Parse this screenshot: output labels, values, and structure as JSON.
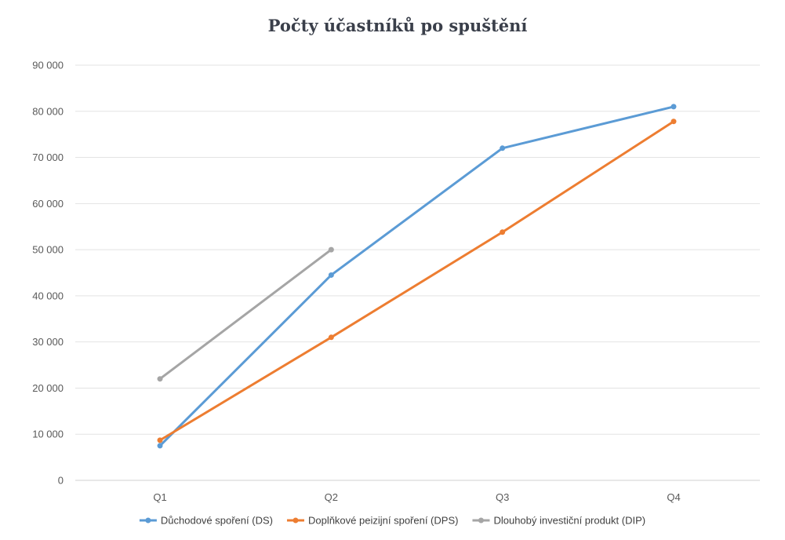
{
  "chart_data": {
    "type": "line",
    "title": "Počty účastníků po spuštění",
    "xlabel": "",
    "ylabel": "",
    "categories": [
      "Q1",
      "Q2",
      "Q3",
      "Q4"
    ],
    "ylim": [
      0,
      90000
    ],
    "yticks": [
      0,
      10000,
      20000,
      30000,
      40000,
      50000,
      60000,
      70000,
      80000,
      90000
    ],
    "ytick_labels": [
      "0",
      "10 000",
      "20 000",
      "30 000",
      "40 000",
      "50 000",
      "60 000",
      "70 000",
      "80 000",
      "90 000"
    ],
    "grid": true,
    "legend_position": "bottom",
    "series": [
      {
        "name": "Důchodové spoření (DS)",
        "color": "#5b9bd5",
        "values": [
          7500,
          44500,
          72000,
          81000
        ]
      },
      {
        "name": "Doplňkové peizijní spoření (DPS)",
        "color": "#ed7d31",
        "values": [
          8700,
          31000,
          53800,
          77800
        ]
      },
      {
        "name": "Dlouhobý investiční produkt (DIP)",
        "color": "#a5a5a5",
        "values": [
          22000,
          50000,
          null,
          null
        ]
      }
    ]
  }
}
